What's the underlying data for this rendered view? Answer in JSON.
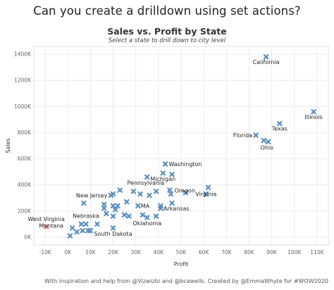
{
  "page": {
    "title": "Can you create a drilldown using set actions?",
    "footer": "With inspiration and help from @Vizwizbi and @bcawells. Created by @EmmaWhyte for #WOW2020"
  },
  "colors": {
    "point": "#5b8fbf",
    "highlight": "#e8807f",
    "grid": "#ececec"
  },
  "chart_data": {
    "type": "scatter",
    "title": "Sales vs. Profit by State",
    "subtitle": "Select a state to drill down to city level",
    "xlabel": "Profit",
    "ylabel": "Sales",
    "xlim": [
      -15000,
      115000
    ],
    "ylim": [
      -60000,
      1460000
    ],
    "x_ticks": [
      -10000,
      0,
      10000,
      20000,
      30000,
      40000,
      50000,
      60000,
      70000,
      80000,
      90000,
      100000,
      110000
    ],
    "x_tick_labels": [
      "-10K",
      "0K",
      "10K",
      "20K",
      "30K",
      "40K",
      "50K",
      "60K",
      "70K",
      "80K",
      "90K",
      "100K",
      "110K"
    ],
    "y_ticks": [
      0,
      200000,
      400000,
      600000,
      800000,
      1000000,
      1200000,
      1400000
    ],
    "y_tick_labels": [
      "0K",
      "200K",
      "400K",
      "600K",
      "800K",
      "1000K",
      "1200K",
      "1400K"
    ],
    "grid": true,
    "points": [
      {
        "x": 87500,
        "y": 1380000,
        "label": "California",
        "lx": 0,
        "ly": 10,
        "anchor": "middle"
      },
      {
        "x": 108500,
        "y": 960000,
        "label": "Illinois",
        "lx": 0,
        "ly": 10,
        "anchor": "middle"
      },
      {
        "x": 93500,
        "y": 870000,
        "label": "Texas",
        "lx": 0,
        "ly": 10,
        "anchor": "middle"
      },
      {
        "x": 83000,
        "y": 780000,
        "label": "Florida",
        "lx": -5,
        "ly": 3,
        "anchor": "end"
      },
      {
        "x": 86500,
        "y": 740000,
        "label": "",
        "lx": 0,
        "ly": 0,
        "anchor": "middle"
      },
      {
        "x": 88500,
        "y": 730000,
        "label": "Ohio",
        "lx": -2,
        "ly": 11,
        "anchor": "middle"
      },
      {
        "x": 43000,
        "y": 560000,
        "label": "Washington",
        "lx": 5,
        "ly": 3,
        "anchor": "start"
      },
      {
        "x": 42000,
        "y": 490000,
        "label": "Michigan",
        "lx": 0,
        "ly": 11,
        "anchor": "middle"
      },
      {
        "x": 46000,
        "y": 480000,
        "label": "",
        "lx": 0,
        "ly": 0,
        "anchor": "middle"
      },
      {
        "x": 35000,
        "y": 460000,
        "label": "Pennsylvania",
        "lx": -2,
        "ly": 11,
        "anchor": "middle"
      },
      {
        "x": 45000,
        "y": 360000,
        "label": "",
        "lx": 0,
        "ly": 0,
        "anchor": "middle"
      },
      {
        "x": 45500,
        "y": 330000,
        "label": "Oregon",
        "lx": 5,
        "ly": -2,
        "anchor": "start"
      },
      {
        "x": 62000,
        "y": 380000,
        "label": "",
        "lx": 0,
        "ly": 0,
        "anchor": "middle"
      },
      {
        "x": 61000,
        "y": 330000,
        "label": "Virginia",
        "lx": 0,
        "ly": 3,
        "anchor": "middle"
      },
      {
        "x": 52000,
        "y": 340000,
        "label": "",
        "lx": 0,
        "ly": 0,
        "anchor": "middle"
      },
      {
        "x": 39000,
        "y": 350000,
        "label": "",
        "lx": 0,
        "ly": 0,
        "anchor": "middle"
      },
      {
        "x": 29000,
        "y": 350000,
        "label": "",
        "lx": 0,
        "ly": 0,
        "anchor": "middle"
      },
      {
        "x": 23000,
        "y": 360000,
        "label": "",
        "lx": 0,
        "ly": 0,
        "anchor": "middle"
      },
      {
        "x": 20000,
        "y": 330000,
        "label": "",
        "lx": 0,
        "ly": 0,
        "anchor": "middle"
      },
      {
        "x": 19000,
        "y": 320000,
        "label": "New Jersey",
        "lx": -5,
        "ly": 3,
        "anchor": "end"
      },
      {
        "x": 36000,
        "y": 320000,
        "label": "",
        "lx": 0,
        "ly": 0,
        "anchor": "middle"
      },
      {
        "x": 32000,
        "y": 330000,
        "label": "",
        "lx": 0,
        "ly": 0,
        "anchor": "middle"
      },
      {
        "x": 7000,
        "y": 260000,
        "label": "",
        "lx": 0,
        "ly": 0,
        "anchor": "middle"
      },
      {
        "x": 26000,
        "y": 270000,
        "label": "",
        "lx": 0,
        "ly": 0,
        "anchor": "middle"
      },
      {
        "x": 16000,
        "y": 250000,
        "label": "",
        "lx": 0,
        "ly": 0,
        "anchor": "middle"
      },
      {
        "x": 20000,
        "y": 240000,
        "label": "",
        "lx": 0,
        "ly": 0,
        "anchor": "middle"
      },
      {
        "x": 22000,
        "y": 240000,
        "label": "",
        "lx": 0,
        "ly": 0,
        "anchor": "middle"
      },
      {
        "x": 31000,
        "y": 240000,
        "label": "MA",
        "lx": 4,
        "ly": 3,
        "anchor": "start"
      },
      {
        "x": 41000,
        "y": 240000,
        "label": "",
        "lx": 0,
        "ly": 0,
        "anchor": "middle"
      },
      {
        "x": 46000,
        "y": 260000,
        "label": "",
        "lx": 0,
        "ly": 0,
        "anchor": "middle"
      },
      {
        "x": 41000,
        "y": 220000,
        "label": "Arkansas",
        "lx": 4,
        "ly": 3,
        "anchor": "start"
      },
      {
        "x": 16000,
        "y": 220000,
        "label": "",
        "lx": 0,
        "ly": 0,
        "anchor": "middle"
      },
      {
        "x": 21000,
        "y": 210000,
        "label": "",
        "lx": 0,
        "ly": 0,
        "anchor": "middle"
      },
      {
        "x": 17000,
        "y": 180000,
        "label": "",
        "lx": 0,
        "ly": 0,
        "anchor": "middle"
      },
      {
        "x": 25000,
        "y": 170000,
        "label": "",
        "lx": 0,
        "ly": 0,
        "anchor": "middle"
      },
      {
        "x": 27000,
        "y": 160000,
        "label": "",
        "lx": 0,
        "ly": 0,
        "anchor": "middle"
      },
      {
        "x": 33000,
        "y": 170000,
        "label": "",
        "lx": 0,
        "ly": 0,
        "anchor": "middle"
      },
      {
        "x": 35000,
        "y": 150000,
        "label": "Oklahoma",
        "lx": 0,
        "ly": 11,
        "anchor": "middle"
      },
      {
        "x": 39000,
        "y": 160000,
        "label": "",
        "lx": 0,
        "ly": 0,
        "anchor": "middle"
      },
      {
        "x": 20000,
        "y": 160000,
        "label": "",
        "lx": 0,
        "ly": 0,
        "anchor": "middle"
      },
      {
        "x": 8000,
        "y": 100000,
        "label": "Nebraska",
        "lx": 0,
        "ly": -9,
        "anchor": "middle"
      },
      {
        "x": 6000,
        "y": 100000,
        "label": "",
        "lx": 0,
        "ly": 0,
        "anchor": "middle"
      },
      {
        "x": 13000,
        "y": 100000,
        "label": "",
        "lx": 0,
        "ly": 0,
        "anchor": "middle"
      },
      {
        "x": 2000,
        "y": 70000,
        "label": "",
        "lx": 0,
        "ly": 0,
        "anchor": "middle"
      },
      {
        "x": 6500,
        "y": 50000,
        "label": "",
        "lx": 0,
        "ly": 0,
        "anchor": "middle"
      },
      {
        "x": 9000,
        "y": 50000,
        "label": "",
        "lx": 0,
        "ly": 0,
        "anchor": "middle"
      },
      {
        "x": 4000,
        "y": 40000,
        "label": "",
        "lx": 0,
        "ly": 0,
        "anchor": "middle"
      },
      {
        "x": 1000,
        "y": 10000,
        "label": "",
        "lx": 0,
        "ly": 0,
        "anchor": "middle"
      },
      {
        "x": 20000,
        "y": 70000,
        "label": "South Dakota",
        "lx": 0,
        "ly": 11,
        "anchor": "middle"
      },
      {
        "x": 10000,
        "y": 50000,
        "label": "",
        "lx": 0,
        "ly": 0,
        "anchor": "middle"
      },
      {
        "x": -9500,
        "y": 80000,
        "label": "West Virginia",
        "lx": 0,
        "ly": -8,
        "anchor": "middle",
        "highlight": true
      },
      {
        "x": -14000,
        "y": 60000,
        "label": "Montana",
        "lx": 4,
        "ly": -2,
        "anchor": "start",
        "hidden_mark": true
      }
    ]
  }
}
